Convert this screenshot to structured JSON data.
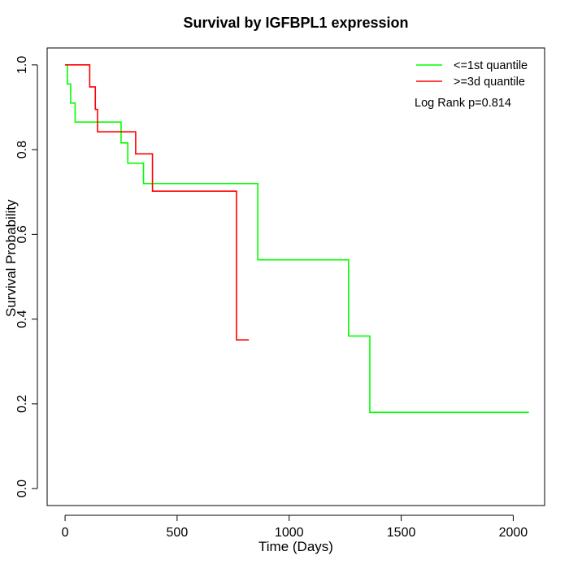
{
  "chart_data": {
    "type": "line",
    "title": "Survival by IGFBPL1 expression",
    "xlabel": "Time (Days)",
    "ylabel": "Survival Probability",
    "xlim": [
      -80,
      2140
    ],
    "ylim": [
      -0.04,
      1.04
    ],
    "xticks": [
      0,
      500,
      1000,
      1500,
      2000
    ],
    "yticks": [
      0.0,
      0.2,
      0.4,
      0.6,
      0.8,
      1.0
    ],
    "xtick_labels": [
      "0",
      "500",
      "1000",
      "1500",
      "2000"
    ],
    "ytick_labels": [
      "0.0",
      "0.2",
      "0.4",
      "0.6",
      "0.8",
      "1.0"
    ],
    "grid": false,
    "legend_position": "top-right",
    "annotation": "Log Rank p=0.814",
    "series": [
      {
        "name": "<=1st quantile",
        "color": "#00ff00",
        "step_x": [
          0,
          10,
          25,
          45,
          250,
          280,
          350,
          860,
          1265,
          1360,
          2070
        ],
        "step_y": [
          1.0,
          0.955,
          0.91,
          0.865,
          0.816,
          0.768,
          0.72,
          0.54,
          0.36,
          0.18,
          0.18
        ]
      },
      {
        "name": ">=3d quantile",
        "color": "#ff0000",
        "step_x": [
          0,
          110,
          135,
          145,
          315,
          390,
          765,
          820
        ],
        "step_y": [
          1.0,
          0.948,
          0.895,
          0.842,
          0.79,
          0.702,
          0.351,
          0.351
        ]
      }
    ]
  }
}
